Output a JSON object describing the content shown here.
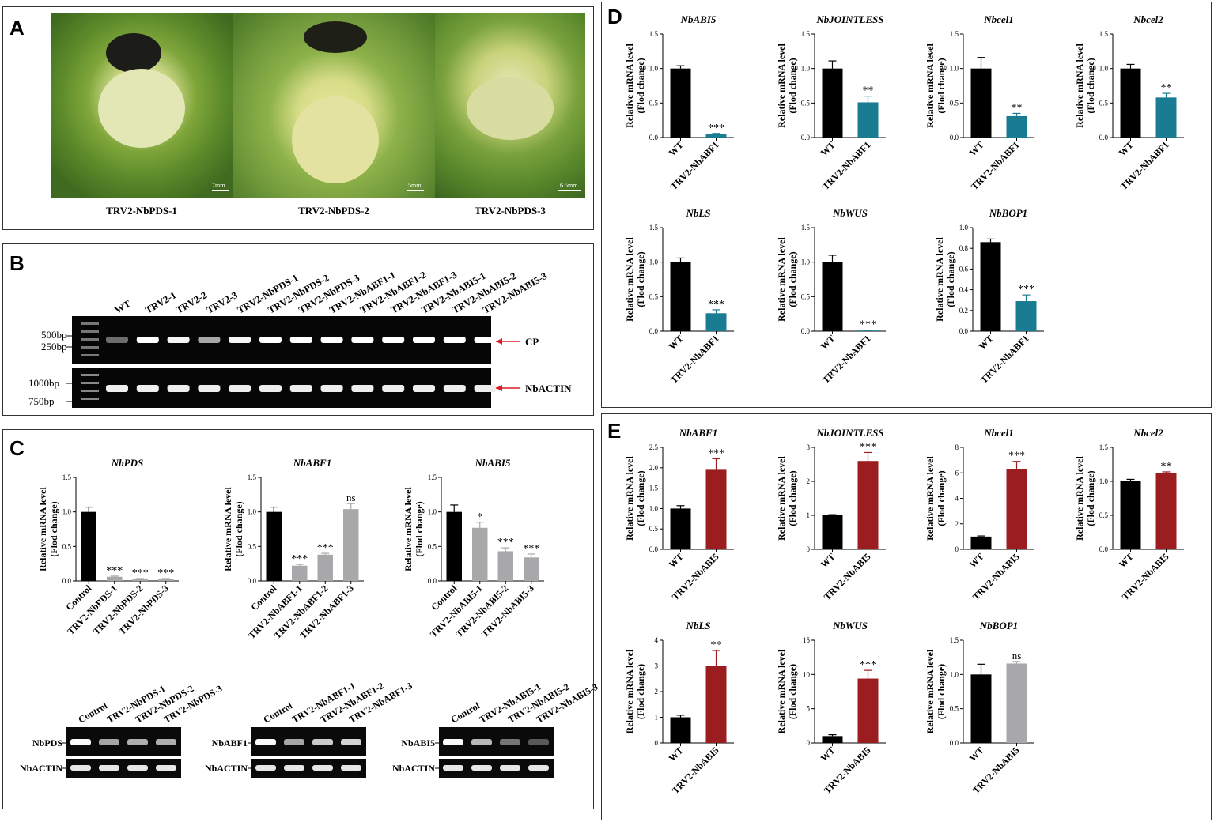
{
  "colors": {
    "wt": "#000000",
    "abf1": "#1a7c93",
    "abi5": "#9c1d1f",
    "silenced": "#a8a8ab",
    "arrow": "#d81f26"
  },
  "panelA": {
    "letter": "A",
    "plants": [
      {
        "caption": "TRV2-NbPDS-1",
        "scale": "7mm"
      },
      {
        "caption": "TRV2-NbPDS-2",
        "scale": "5mm"
      },
      {
        "caption": "TRV2-NbPDS-3",
        "scale": "6.5mm"
      }
    ]
  },
  "panelB": {
    "letter": "B",
    "lanes": [
      "WT",
      "TRV2-1",
      "TRV2-2",
      "TRV2-3",
      "TRV2-NbPDS-1",
      "TRV2-NbPDS-2",
      "TRV2-NbPDS-3",
      "TRV2-NbABF1-1",
      "TRV2-NbABF1-2",
      "TRV2-NbABF1-3",
      "TRV2-NbABI5-1",
      "TRV2-NbABI5-2",
      "TRV2-NbABI5-3"
    ],
    "top_gel": {
      "markers": [
        "500bp",
        "250bp"
      ],
      "label": "CP",
      "intensity": [
        0.25,
        1,
        0.95,
        0.55,
        0.95,
        1,
        1,
        1,
        1,
        1,
        1,
        1,
        1
      ]
    },
    "bottom_gel": {
      "markers": [
        "1000bp",
        "750bp"
      ],
      "label": "NbACTIN"
    }
  },
  "panelC": {
    "letter": "C"
  },
  "panelD": {
    "letter": "D"
  },
  "panelE": {
    "letter": "E"
  },
  "ylabel": [
    "Relative mRNA level",
    "(Flod change)"
  ],
  "chart_data": [
    {
      "panel": "C",
      "type": "bar",
      "title": "NbPDS",
      "categories": [
        "Control",
        "TRV2-NbPDS-1",
        "TRV2-NbPDS-2",
        "TRV2-NbPDS-3"
      ],
      "values": [
        1.0,
        0.06,
        0.03,
        0.03
      ],
      "errors": [
        0.07,
        0.01,
        0.005,
        0.005
      ],
      "sig": [
        "",
        "***",
        "***",
        "***"
      ],
      "ylim": [
        0,
        1.5
      ],
      "yticks": [
        "0.0",
        "0.5",
        "1.0",
        "1.5"
      ]
    },
    {
      "panel": "C",
      "type": "bar",
      "title": "NbABF1",
      "categories": [
        "Control",
        "TRV2-NbABF1-1",
        "TRV2-NbABF1-2",
        "TRV2-NbABF1-3"
      ],
      "values": [
        1.0,
        0.22,
        0.38,
        1.04
      ],
      "errors": [
        0.07,
        0.02,
        0.02,
        0.08
      ],
      "sig": [
        "",
        "***",
        "***",
        "ns"
      ],
      "ylim": [
        0,
        1.5
      ],
      "yticks": [
        "0.0",
        "0.5",
        "1.0",
        "1.5"
      ]
    },
    {
      "panel": "C",
      "type": "bar",
      "title": "NbABI5",
      "categories": [
        "Control",
        "TRV2-NbABI5-1",
        "TRV2-NbABI5-2",
        "TRV2-NbABI5-3"
      ],
      "values": [
        1.0,
        0.77,
        0.43,
        0.34
      ],
      "errors": [
        0.1,
        0.08,
        0.05,
        0.05
      ],
      "sig": [
        "",
        "*",
        "***",
        "***"
      ],
      "ylim": [
        0,
        1.5
      ],
      "yticks": [
        "0.0",
        "0.5",
        "1.0",
        "1.5"
      ]
    },
    {
      "panel": "D",
      "type": "bar",
      "title": "NbABI5",
      "categories": [
        "WT",
        "TRV2-NbABF1"
      ],
      "values": [
        1.0,
        0.05
      ],
      "errors": [
        0.04,
        0.01
      ],
      "sig": [
        "",
        "***"
      ],
      "ylim": [
        0,
        1.5
      ],
      "yticks": [
        "0.0",
        "0.5",
        "1.0",
        "1.5"
      ]
    },
    {
      "panel": "D",
      "type": "bar",
      "title": "NbJOINTLESS",
      "categories": [
        "WT",
        "TRV2-NbABF1"
      ],
      "values": [
        1.0,
        0.51
      ],
      "errors": [
        0.11,
        0.09
      ],
      "sig": [
        "",
        "**"
      ],
      "ylim": [
        0,
        1.5
      ],
      "yticks": [
        "0.0",
        "0.5",
        "1.0",
        "1.5"
      ]
    },
    {
      "panel": "D",
      "type": "bar",
      "title": "Nbcel1",
      "categories": [
        "WT",
        "TRV2-NbABF1"
      ],
      "values": [
        1.0,
        0.31
      ],
      "errors": [
        0.16,
        0.04
      ],
      "sig": [
        "",
        "**"
      ],
      "ylim": [
        0,
        1.5
      ],
      "yticks": [
        "0.0",
        "0.5",
        "1.0",
        "1.5"
      ]
    },
    {
      "panel": "D",
      "type": "bar",
      "title": "Nbcel2",
      "categories": [
        "WT",
        "TRV2-NbABF1"
      ],
      "values": [
        1.0,
        0.58
      ],
      "errors": [
        0.06,
        0.06
      ],
      "sig": [
        "",
        "**"
      ],
      "ylim": [
        0,
        1.5
      ],
      "yticks": [
        "0.0",
        "0.5",
        "1.0",
        "1.5"
      ]
    },
    {
      "panel": "D",
      "type": "bar",
      "title": "NbLS",
      "categories": [
        "WT",
        "TRV2-NbABF1"
      ],
      "values": [
        1.0,
        0.26
      ],
      "errors": [
        0.06,
        0.05
      ],
      "sig": [
        "",
        "***"
      ],
      "ylim": [
        0,
        1.5
      ],
      "yticks": [
        "0.0",
        "0.5",
        "1.0",
        "1.5"
      ]
    },
    {
      "panel": "D",
      "type": "bar",
      "title": "NbWUS",
      "categories": [
        "WT",
        "TRV2-NbABF1"
      ],
      "values": [
        1.0,
        0.01
      ],
      "errors": [
        0.1,
        0.005
      ],
      "sig": [
        "",
        "***"
      ],
      "ylim": [
        0,
        1.5
      ],
      "yticks": [
        "0.0",
        "0.5",
        "1.0",
        "1.5"
      ]
    },
    {
      "panel": "D",
      "type": "bar",
      "title": "NbBOP1",
      "categories": [
        "WT",
        "TRV2-NbABF1"
      ],
      "values": [
        0.86,
        0.29
      ],
      "errors": [
        0.03,
        0.06
      ],
      "sig": [
        "",
        "***"
      ],
      "ylim": [
        0,
        1.0
      ],
      "yticks": [
        "0.0",
        "0.2",
        "0.4",
        "0.6",
        "0.8",
        "1.0"
      ]
    },
    {
      "panel": "E",
      "type": "bar",
      "title": "NbABF1",
      "categories": [
        "WT",
        "TRV2-NbABI5"
      ],
      "values": [
        1.0,
        1.95
      ],
      "errors": [
        0.07,
        0.27
      ],
      "sig": [
        "",
        "***"
      ],
      "ylim": [
        0,
        2.5
      ],
      "yticks": [
        "0.0",
        "0.5",
        "1.0",
        "1.5",
        "2.0",
        "2.5"
      ]
    },
    {
      "panel": "E",
      "type": "bar",
      "title": "NbJOINTLESS",
      "categories": [
        "WT",
        "TRV2-NbABI5"
      ],
      "values": [
        1.0,
        2.6
      ],
      "errors": [
        0.02,
        0.25
      ],
      "sig": [
        "",
        "***"
      ],
      "ylim": [
        0,
        3
      ],
      "yticks": [
        "0",
        "1",
        "2",
        "3"
      ]
    },
    {
      "panel": "E",
      "type": "bar",
      "title": "Nbcel1",
      "categories": [
        "WT",
        "TRV2-NbABI5"
      ],
      "values": [
        1.0,
        6.3
      ],
      "errors": [
        0.05,
        0.6
      ],
      "sig": [
        "",
        "***"
      ],
      "ylim": [
        0,
        8
      ],
      "yticks": [
        "0",
        "2",
        "4",
        "6",
        "8"
      ]
    },
    {
      "panel": "E",
      "type": "bar",
      "title": "Nbcel2",
      "categories": [
        "WT",
        "TRV2-NbABI5"
      ],
      "values": [
        1.0,
        1.12
      ],
      "errors": [
        0.03,
        0.02
      ],
      "sig": [
        "",
        "**"
      ],
      "ylim": [
        0,
        1.5
      ],
      "yticks": [
        "0.0",
        "0.5",
        "1.0",
        "1.5"
      ]
    },
    {
      "panel": "E",
      "type": "bar",
      "title": "NbLS",
      "categories": [
        "WT",
        "TRV2-NbABI5"
      ],
      "values": [
        1.0,
        3.0
      ],
      "errors": [
        0.08,
        0.6
      ],
      "sig": [
        "",
        "**"
      ],
      "ylim": [
        0,
        4
      ],
      "yticks": [
        "0",
        "1",
        "2",
        "3",
        "4"
      ]
    },
    {
      "panel": "E",
      "type": "bar",
      "title": "NbWUS",
      "categories": [
        "WT",
        "TRV2-NbABI5"
      ],
      "values": [
        1.0,
        9.4
      ],
      "errors": [
        0.2,
        1.2
      ],
      "sig": [
        "",
        "***"
      ],
      "ylim": [
        0,
        15
      ],
      "yticks": [
        "0",
        "5",
        "10",
        "15"
      ]
    },
    {
      "panel": "E",
      "type": "bar",
      "title": "NbBOP1",
      "categories": [
        "WT",
        "TRV2-NbABI5"
      ],
      "values": [
        1.0,
        1.16
      ],
      "errors": [
        0.15,
        0.03
      ],
      "sig": [
        "",
        "ns"
      ],
      "ylim": [
        0,
        1.5
      ],
      "yticks": [
        "0.0",
        "0.5",
        "1.0",
        "1.5"
      ]
    }
  ],
  "blots": [
    {
      "target": "NbPDS",
      "ref": "NbACTIN",
      "lanes": [
        "Control",
        "TRV2-NbPDS-1",
        "TRV2-NbPDS-2",
        "TRV2-NbPDS-3"
      ],
      "intensity": [
        1,
        0.55,
        0.6,
        0.6
      ]
    },
    {
      "target": "NbABF1",
      "ref": "NbACTIN",
      "lanes": [
        "Control",
        "TRV2-NbABF1-1",
        "TRV2-NbABF1-2",
        "TRV2-NbABF1-3"
      ],
      "intensity": [
        1,
        0.55,
        0.75,
        0.8
      ]
    },
    {
      "target": "NbABI5",
      "ref": "NbACTIN",
      "lanes": [
        "Control",
        "TRV2-NbABI5-1",
        "TRV2-NbABI5-2",
        "TRV2-NbABI5-3"
      ],
      "intensity": [
        1,
        0.65,
        0.3,
        0.15
      ]
    }
  ]
}
